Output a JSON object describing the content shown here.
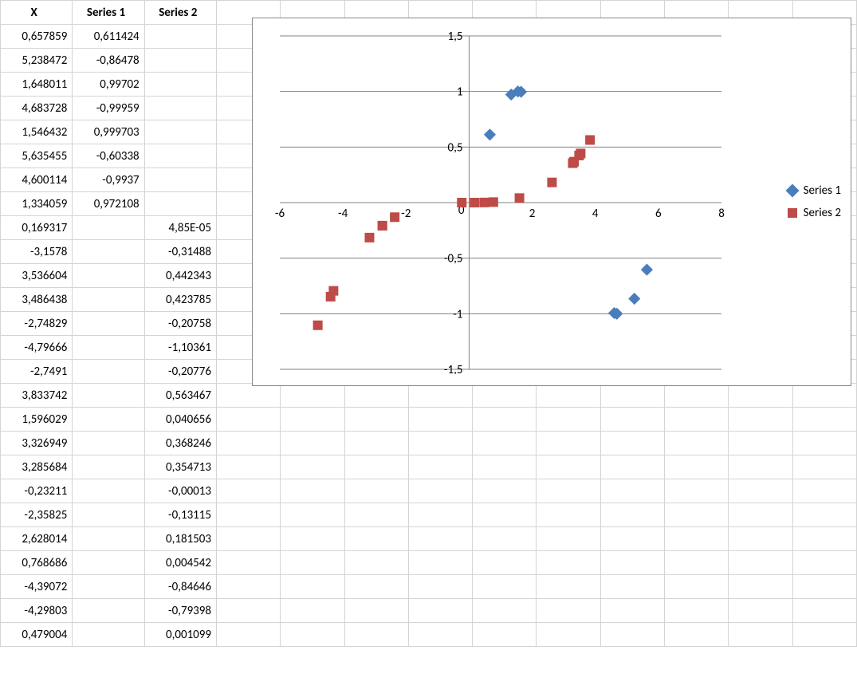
{
  "table": {
    "headers": [
      "X",
      "Series 1",
      "Series 2"
    ],
    "rows": [
      [
        "0,657859",
        "0,611424",
        ""
      ],
      [
        "5,238472",
        "-0,86478",
        ""
      ],
      [
        "1,648011",
        "0,99702",
        ""
      ],
      [
        "4,683728",
        "-0,99959",
        ""
      ],
      [
        "1,546432",
        "0,999703",
        ""
      ],
      [
        "5,635455",
        "-0,60338",
        ""
      ],
      [
        "4,600114",
        "-0,9937",
        ""
      ],
      [
        "1,334059",
        "0,972108",
        ""
      ],
      [
        "0,169317",
        "",
        "4,85E-05"
      ],
      [
        "-3,1578",
        "",
        "-0,31488"
      ],
      [
        "3,536604",
        "",
        "0,442343"
      ],
      [
        "3,486438",
        "",
        "0,423785"
      ],
      [
        "-2,74829",
        "",
        "-0,20758"
      ],
      [
        "-4,79666",
        "",
        "-1,10361"
      ],
      [
        "-2,7491",
        "",
        "-0,20776"
      ],
      [
        "3,833742",
        "",
        "0,563467"
      ],
      [
        "1,596029",
        "",
        "0,040656"
      ],
      [
        "3,326949",
        "",
        "0,368246"
      ],
      [
        "3,285684",
        "",
        "0,354713"
      ],
      [
        "-0,23211",
        "",
        "-0,00013"
      ],
      [
        "-2,35825",
        "",
        "-0,13115"
      ],
      [
        "2,628014",
        "",
        "0,181503"
      ],
      [
        "0,768686",
        "",
        "0,004542"
      ],
      [
        "-4,39072",
        "",
        "-0,84646"
      ],
      [
        "-4,29803",
        "",
        "-0,79398"
      ],
      [
        "0,479004",
        "",
        "0,001099"
      ]
    ]
  },
  "chart": {
    "type": "scatter",
    "xlim": [
      -6,
      8
    ],
    "ylim": [
      -1.5,
      1.5
    ],
    "xticks": [
      -6,
      -4,
      -2,
      0,
      2,
      4,
      6,
      8
    ],
    "yticks": [
      -1.5,
      -1,
      -0.5,
      0,
      0.5,
      1,
      1.5
    ],
    "ytick_labels": [
      "-1,5",
      "-1",
      "-0,5",
      "0",
      "0,5",
      "1",
      "1,5"
    ],
    "xtick_labels": [
      "-6",
      "-4",
      "-2",
      "0",
      "2",
      "4",
      "6",
      "8"
    ],
    "grid_color": "#808080",
    "border_color": "#888888",
    "background_color": "#ffffff",
    "label_fontsize": 15,
    "marker_size": 11,
    "series": [
      {
        "name": "Series 1",
        "marker": "diamond",
        "color": "#4a7ebb",
        "points": [
          [
            0.657859,
            0.611424
          ],
          [
            5.238472,
            -0.86478
          ],
          [
            1.648011,
            0.99702
          ],
          [
            4.683728,
            -0.99959
          ],
          [
            1.546432,
            0.999703
          ],
          [
            5.635455,
            -0.60338
          ],
          [
            4.600114,
            -0.9937
          ],
          [
            1.334059,
            0.972108
          ]
        ]
      },
      {
        "name": "Series 2",
        "marker": "square",
        "color": "#be4b48",
        "points": [
          [
            0.169317,
            4.85e-05
          ],
          [
            -3.1578,
            -0.31488
          ],
          [
            3.536604,
            0.442343
          ],
          [
            3.486438,
            0.423785
          ],
          [
            -2.74829,
            -0.20758
          ],
          [
            -4.79666,
            -1.10361
          ],
          [
            -2.7491,
            -0.20776
          ],
          [
            3.833742,
            0.563467
          ],
          [
            1.596029,
            0.040656
          ],
          [
            3.326949,
            0.368246
          ],
          [
            3.285684,
            0.354713
          ],
          [
            -0.23211,
            -0.00013
          ],
          [
            -2.35825,
            -0.13115
          ],
          [
            2.628014,
            0.181503
          ],
          [
            0.768686,
            0.004542
          ],
          [
            -4.39072,
            -0.84646
          ],
          [
            -4.29803,
            -0.79398
          ],
          [
            0.479004,
            0.001099
          ]
        ]
      }
    ],
    "legend": {
      "items": [
        "Series 1",
        "Series 2"
      ]
    }
  }
}
